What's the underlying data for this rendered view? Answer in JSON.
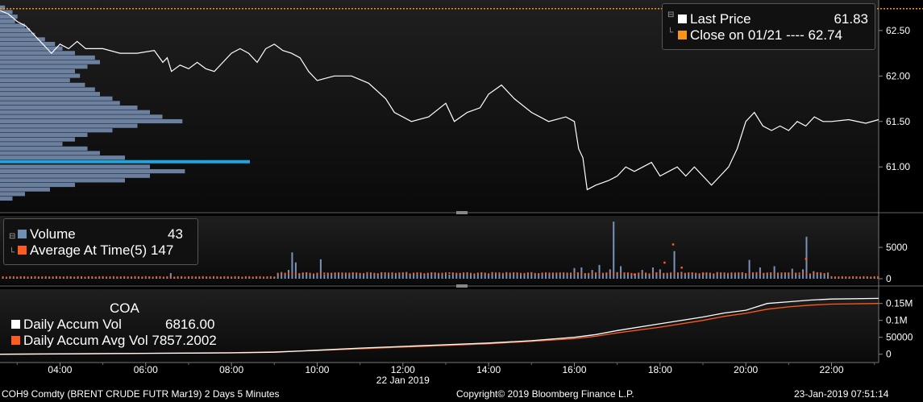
{
  "chart_data": {
    "type": "line",
    "instrument": "COH9 Comdty (BRENT CRUDE FUTR  Mar19) 2 Days 5 Minutes",
    "copyright": "Copyright© 2019 Bloomberg Finance L.P.",
    "timestamp": "23-Jan-2019 07:51:14",
    "date_label": "22 Jan 2019",
    "x_ticks": [
      "04:00",
      "06:00",
      "08:00",
      "10:00",
      "12:00",
      "14:00",
      "16:00",
      "18:00",
      "20:00",
      "22:00"
    ],
    "xlim_hours": [
      2.6,
      23.1
    ],
    "price_panel": {
      "y_ticks": [
        "62.50",
        "62.00",
        "61.50",
        "61.00"
      ],
      "ylim": [
        60.55,
        62.8
      ],
      "legend": [
        {
          "label": "Last Price",
          "value": "61.83",
          "color": "#ffffff"
        },
        {
          "label": "Close on 01/21 ---- 62.74",
          "value": "",
          "color": "#f7941d"
        }
      ],
      "close_line": 62.74,
      "series": [
        [
          2.6,
          62.72
        ],
        [
          2.8,
          62.68
        ],
        [
          3.0,
          62.6
        ],
        [
          3.2,
          62.55
        ],
        [
          3.4,
          62.45
        ],
        [
          3.6,
          62.35
        ],
        [
          3.7,
          62.3
        ],
        [
          3.8,
          62.25
        ],
        [
          4.0,
          62.35
        ],
        [
          4.2,
          62.3
        ],
        [
          4.4,
          62.38
        ],
        [
          4.6,
          62.3
        ],
        [
          5.0,
          62.3
        ],
        [
          5.4,
          62.25
        ],
        [
          5.8,
          62.25
        ],
        [
          6.2,
          62.28
        ],
        [
          6.4,
          62.15
        ],
        [
          6.5,
          62.2
        ],
        [
          6.6,
          62.05
        ],
        [
          6.8,
          62.12
        ],
        [
          7.0,
          62.08
        ],
        [
          7.2,
          62.15
        ],
        [
          7.4,
          62.08
        ],
        [
          7.6,
          62.05
        ],
        [
          7.8,
          62.15
        ],
        [
          8.0,
          62.25
        ],
        [
          8.2,
          62.3
        ],
        [
          8.4,
          62.25
        ],
        [
          8.6,
          62.15
        ],
        [
          8.8,
          62.3
        ],
        [
          9.0,
          62.35
        ],
        [
          9.2,
          62.28
        ],
        [
          9.4,
          62.25
        ],
        [
          9.6,
          62.2
        ],
        [
          9.8,
          62.05
        ],
        [
          10.0,
          61.95
        ],
        [
          10.4,
          62.0
        ],
        [
          10.8,
          62.0
        ],
        [
          11.2,
          61.92
        ],
        [
          11.6,
          61.75
        ],
        [
          11.8,
          61.6
        ],
        [
          12.2,
          61.5
        ],
        [
          12.6,
          61.55
        ],
        [
          13.0,
          61.7
        ],
        [
          13.2,
          61.5
        ],
        [
          13.5,
          61.6
        ],
        [
          13.8,
          61.65
        ],
        [
          14.0,
          61.8
        ],
        [
          14.3,
          61.9
        ],
        [
          14.6,
          61.75
        ],
        [
          15.0,
          61.6
        ],
        [
          15.4,
          61.5
        ],
        [
          15.8,
          61.55
        ],
        [
          16.0,
          61.5
        ],
        [
          16.1,
          61.2
        ],
        [
          16.2,
          61.1
        ],
        [
          16.3,
          60.75
        ],
        [
          16.5,
          60.8
        ],
        [
          16.8,
          60.85
        ],
        [
          17.0,
          60.9
        ],
        [
          17.2,
          61.0
        ],
        [
          17.4,
          60.95
        ],
        [
          17.6,
          61.0
        ],
        [
          17.8,
          61.05
        ],
        [
          18.0,
          60.9
        ],
        [
          18.2,
          60.95
        ],
        [
          18.4,
          61.0
        ],
        [
          18.6,
          60.9
        ],
        [
          18.8,
          61.0
        ],
        [
          19.0,
          60.9
        ],
        [
          19.2,
          60.8
        ],
        [
          19.4,
          60.9
        ],
        [
          19.6,
          61.0
        ],
        [
          19.8,
          61.2
        ],
        [
          20.0,
          61.5
        ],
        [
          20.2,
          61.6
        ],
        [
          20.4,
          61.45
        ],
        [
          20.6,
          61.4
        ],
        [
          20.8,
          61.45
        ],
        [
          21.0,
          61.4
        ],
        [
          21.2,
          61.5
        ],
        [
          21.4,
          61.45
        ],
        [
          21.6,
          61.55
        ],
        [
          21.8,
          61.5
        ],
        [
          22.0,
          61.5
        ],
        [
          22.4,
          61.52
        ],
        [
          22.8,
          61.48
        ],
        [
          23.1,
          61.52
        ]
      ],
      "volume_profile": [
        {
          "price": 62.75,
          "vol": 0.02
        },
        {
          "price": 62.7,
          "vol": 0.05
        },
        {
          "price": 62.65,
          "vol": 0.07
        },
        {
          "price": 62.6,
          "vol": 0.06
        },
        {
          "price": 62.55,
          "vol": 0.1
        },
        {
          "price": 62.5,
          "vol": 0.12
        },
        {
          "price": 62.45,
          "vol": 0.14
        },
        {
          "price": 62.4,
          "vol": 0.18
        },
        {
          "price": 62.35,
          "vol": 0.22
        },
        {
          "price": 62.3,
          "vol": 0.25
        },
        {
          "price": 62.25,
          "vol": 0.3
        },
        {
          "price": 62.2,
          "vol": 0.38
        },
        {
          "price": 62.15,
          "vol": 0.4
        },
        {
          "price": 62.1,
          "vol": 0.35
        },
        {
          "price": 62.05,
          "vol": 0.3
        },
        {
          "price": 62.0,
          "vol": 0.32
        },
        {
          "price": 61.95,
          "vol": 0.28
        },
        {
          "price": 61.9,
          "vol": 0.34
        },
        {
          "price": 61.85,
          "vol": 0.38
        },
        {
          "price": 61.8,
          "vol": 0.4
        },
        {
          "price": 61.75,
          "vol": 0.45
        },
        {
          "price": 61.7,
          "vol": 0.48
        },
        {
          "price": 61.65,
          "vol": 0.55
        },
        {
          "price": 61.6,
          "vol": 0.6
        },
        {
          "price": 61.55,
          "vol": 0.65
        },
        {
          "price": 61.5,
          "vol": 0.73
        },
        {
          "price": 61.45,
          "vol": 0.55
        },
        {
          "price": 61.4,
          "vol": 0.45
        },
        {
          "price": 61.35,
          "vol": 0.35
        },
        {
          "price": 61.3,
          "vol": 0.3
        },
        {
          "price": 61.25,
          "vol": 0.25
        },
        {
          "price": 61.2,
          "vol": 0.35
        },
        {
          "price": 61.15,
          "vol": 0.4
        },
        {
          "price": 61.1,
          "vol": 0.5
        },
        {
          "price": 61.05,
          "vol": 1.0
        },
        {
          "price": 61.0,
          "vol": 0.6
        },
        {
          "price": 60.95,
          "vol": 0.74
        },
        {
          "price": 60.9,
          "vol": 0.6
        },
        {
          "price": 60.85,
          "vol": 0.5
        },
        {
          "price": 60.8,
          "vol": 0.3
        },
        {
          "price": 60.75,
          "vol": 0.2
        },
        {
          "price": 60.7,
          "vol": 0.1
        },
        {
          "price": 60.65,
          "vol": 0.05
        }
      ],
      "highlight_price": 61.05
    },
    "volume_panel": {
      "y_ticks": [
        "5000",
        "0"
      ],
      "ylim": [
        0,
        9500
      ],
      "legend": [
        {
          "label": "Volume",
          "value": "43",
          "color": "#6f8fb3"
        },
        {
          "label": "Average At Time(5)",
          "value": "147",
          "color": "#ff5a1f"
        }
      ],
      "spikes": [
        [
          6.6,
          900
        ],
        [
          9.3,
          1400
        ],
        [
          9.4,
          4200
        ],
        [
          9.5,
          2600
        ],
        [
          10.1,
          3100
        ],
        [
          10.5,
          900
        ],
        [
          12.4,
          800
        ],
        [
          14.3,
          700
        ],
        [
          15.4,
          900
        ],
        [
          16.0,
          1700
        ],
        [
          16.2,
          1800
        ],
        [
          16.4,
          1400
        ],
        [
          16.6,
          2200
        ],
        [
          16.85,
          1500
        ],
        [
          16.93,
          9100
        ],
        [
          17.1,
          2000
        ],
        [
          17.3,
          800
        ],
        [
          17.6,
          1400
        ],
        [
          17.85,
          1800
        ],
        [
          18.0,
          1500
        ],
        [
          18.3,
          4400
        ],
        [
          18.5,
          1100
        ],
        [
          20.1,
          3000
        ],
        [
          20.3,
          1800
        ],
        [
          20.7,
          2000
        ],
        [
          21.1,
          1600
        ],
        [
          21.3,
          1500
        ],
        [
          21.4,
          2800
        ],
        [
          21.45,
          6700
        ],
        [
          21.6,
          1200
        ]
      ],
      "avg_spikes": [
        [
          17.4,
          700
        ],
        [
          18.3,
          5500
        ],
        [
          18.5,
          1800
        ],
        [
          18.1,
          2600
        ],
        [
          19.0,
          800
        ],
        [
          21.4,
          3200
        ]
      ]
    },
    "accum_panel": {
      "title": "COA",
      "y_ticks": [
        "0.15M",
        "0.1M",
        "50000",
        "0"
      ],
      "ylim": [
        -15000,
        185000
      ],
      "legend": [
        {
          "label": "Daily Accum Vol",
          "value": "6816.00",
          "color": "#ffffff"
        },
        {
          "label": "Daily Accum Avg Vol",
          "value": "7857.2002",
          "color": "#ff5a1f"
        }
      ],
      "accum_vol": [
        [
          2.6,
          0
        ],
        [
          4.0,
          1000
        ],
        [
          6.0,
          2500
        ],
        [
          8.0,
          4000
        ],
        [
          9.0,
          6000
        ],
        [
          10.0,
          12000
        ],
        [
          11.0,
          18000
        ],
        [
          12.0,
          23000
        ],
        [
          13.0,
          28000
        ],
        [
          14.0,
          33000
        ],
        [
          15.0,
          40000
        ],
        [
          16.0,
          50000
        ],
        [
          16.5,
          58000
        ],
        [
          17.0,
          70000
        ],
        [
          18.0,
          90000
        ],
        [
          19.0,
          110000
        ],
        [
          19.5,
          122000
        ],
        [
          20.0,
          130000
        ],
        [
          20.5,
          150000
        ],
        [
          21.0,
          155000
        ],
        [
          21.5,
          160000
        ],
        [
          22.0,
          163000
        ],
        [
          23.1,
          165000
        ]
      ],
      "accum_avg": [
        [
          2.6,
          0
        ],
        [
          4.0,
          1200
        ],
        [
          6.0,
          2800
        ],
        [
          8.0,
          4500
        ],
        [
          9.0,
          7000
        ],
        [
          10.0,
          11000
        ],
        [
          11.0,
          16000
        ],
        [
          12.0,
          21000
        ],
        [
          13.0,
          26000
        ],
        [
          14.0,
          31000
        ],
        [
          15.0,
          38000
        ],
        [
          16.0,
          46000
        ],
        [
          16.5,
          53000
        ],
        [
          17.0,
          63000
        ],
        [
          18.0,
          80000
        ],
        [
          19.0,
          100000
        ],
        [
          19.5,
          112000
        ],
        [
          20.0,
          121000
        ],
        [
          20.5,
          133000
        ],
        [
          21.0,
          140000
        ],
        [
          21.5,
          145000
        ],
        [
          22.0,
          148000
        ],
        [
          23.1,
          150000
        ]
      ]
    },
    "colors": {
      "price_line": "#ffffff",
      "close_line": "#f7941d",
      "profile": "#7b93b8",
      "profile_highlight": "#1ea6e0",
      "volume_bar": "#7b93b8",
      "avg_dot": "#ff5a1f",
      "accum_vol": "#ffffff",
      "accum_avg": "#ff5a1f"
    }
  }
}
